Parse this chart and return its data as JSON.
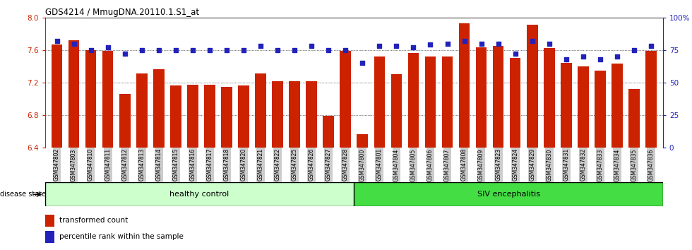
{
  "title": "GDS4214 / MmugDNA.20110.1.S1_at",
  "samples": [
    "GSM347802",
    "GSM347803",
    "GSM347810",
    "GSM347811",
    "GSM347812",
    "GSM347813",
    "GSM347814",
    "GSM347815",
    "GSM347816",
    "GSM347817",
    "GSM347818",
    "GSM347820",
    "GSM347821",
    "GSM347822",
    "GSM347825",
    "GSM347826",
    "GSM347827",
    "GSM347828",
    "GSM347800",
    "GSM347801",
    "GSM347804",
    "GSM347805",
    "GSM347806",
    "GSM347807",
    "GSM347808",
    "GSM347809",
    "GSM347823",
    "GSM347824",
    "GSM347829",
    "GSM347830",
    "GSM347831",
    "GSM347832",
    "GSM347833",
    "GSM347834",
    "GSM347835",
    "GSM347836"
  ],
  "red_values": [
    7.67,
    7.72,
    7.6,
    7.59,
    7.06,
    7.31,
    7.36,
    7.16,
    7.17,
    7.17,
    7.15,
    7.16,
    7.31,
    7.22,
    7.22,
    7.22,
    6.79,
    7.59,
    6.56,
    7.52,
    7.3,
    7.56,
    7.52,
    7.52,
    7.93,
    7.63,
    7.65,
    7.5,
    7.91,
    7.62,
    7.44,
    7.4,
    7.35,
    7.43,
    7.12,
    7.59
  ],
  "blue_values": [
    82,
    80,
    75,
    77,
    72,
    75,
    75,
    75,
    75,
    75,
    75,
    75,
    78,
    75,
    75,
    78,
    75,
    75,
    65,
    78,
    78,
    77,
    79,
    80,
    82,
    80,
    80,
    72,
    82,
    80,
    68,
    70,
    68,
    70,
    75,
    78
  ],
  "n_healthy": 18,
  "n_siv": 18,
  "ylim_left": [
    6.4,
    8.0
  ],
  "ylim_right": [
    0,
    100
  ],
  "yticks_left": [
    6.4,
    6.8,
    7.2,
    7.6,
    8.0
  ],
  "yticks_right": [
    0,
    25,
    50,
    75,
    100
  ],
  "healthy_label": "healthy control",
  "siv_label": "SIV encephalitis",
  "disease_state_label": "disease state",
  "legend_red": "transformed count",
  "legend_blue": "percentile rank within the sample",
  "bar_color": "#cc2200",
  "dot_color": "#2222bb",
  "healthy_bg": "#ccffcc",
  "siv_bg": "#44dd44",
  "xtick_bg": "#cccccc",
  "bar_width": 0.65,
  "dot_size": 18
}
